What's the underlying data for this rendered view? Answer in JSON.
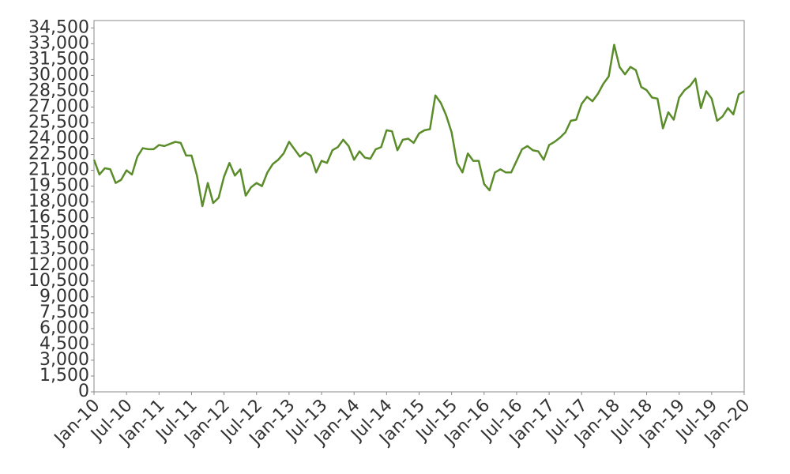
{
  "chart_data": {
    "type": "line",
    "x": [
      "2010-01",
      "2010-02",
      "2010-03",
      "2010-04",
      "2010-05",
      "2010-06",
      "2010-07",
      "2010-08",
      "2010-09",
      "2010-10",
      "2010-11",
      "2010-12",
      "2011-01",
      "2011-02",
      "2011-03",
      "2011-04",
      "2011-05",
      "2011-06",
      "2011-07",
      "2011-08",
      "2011-09",
      "2011-10",
      "2011-11",
      "2011-12",
      "2012-01",
      "2012-02",
      "2012-03",
      "2012-04",
      "2012-05",
      "2012-06",
      "2012-07",
      "2012-08",
      "2012-09",
      "2012-10",
      "2012-11",
      "2012-12",
      "2013-01",
      "2013-02",
      "2013-03",
      "2013-04",
      "2013-05",
      "2013-06",
      "2013-07",
      "2013-08",
      "2013-09",
      "2013-10",
      "2013-11",
      "2013-12",
      "2014-01",
      "2014-02",
      "2014-03",
      "2014-04",
      "2014-05",
      "2014-06",
      "2014-07",
      "2014-08",
      "2014-09",
      "2014-10",
      "2014-11",
      "2014-12",
      "2015-01",
      "2015-02",
      "2015-03",
      "2015-04",
      "2015-05",
      "2015-06",
      "2015-07",
      "2015-08",
      "2015-09",
      "2015-10",
      "2015-11",
      "2015-12",
      "2016-01",
      "2016-02",
      "2016-03",
      "2016-04",
      "2016-05",
      "2016-06",
      "2016-07",
      "2016-08",
      "2016-09",
      "2016-10",
      "2016-11",
      "2016-12",
      "2017-01",
      "2017-02",
      "2017-03",
      "2017-04",
      "2017-05",
      "2017-06",
      "2017-07",
      "2017-08",
      "2017-09",
      "2017-10",
      "2017-11",
      "2017-12",
      "2018-01",
      "2018-02",
      "2018-03",
      "2018-04",
      "2018-05",
      "2018-06",
      "2018-07",
      "2018-08",
      "2018-09",
      "2018-10",
      "2018-11",
      "2018-12",
      "2019-01",
      "2019-02",
      "2019-03",
      "2019-04",
      "2019-05",
      "2019-06",
      "2019-07",
      "2019-08",
      "2019-09",
      "2019-10",
      "2019-11",
      "2019-12",
      "2020-01"
    ],
    "series": [
      {
        "color": "#5b8c2a",
        "values": [
          22000,
          20600,
          21200,
          21100,
          19800,
          20100,
          21000,
          20600,
          22300,
          23100,
          23000,
          23000,
          23400,
          23300,
          23500,
          23700,
          23600,
          22400,
          22400,
          20500,
          17600,
          19800,
          17900,
          18400,
          20400,
          21700,
          20500,
          21100,
          18600,
          19400,
          19800,
          19500,
          20800,
          21600,
          22000,
          22600,
          23700,
          23000,
          22300,
          22700,
          22400,
          20800,
          21900,
          21700,
          22900,
          23200,
          23900,
          23300,
          22000,
          22800,
          22200,
          22100,
          23000,
          23200,
          24800,
          24700,
          22900,
          23900,
          24000,
          23600,
          24500,
          24800,
          24900,
          28100,
          27400,
          26200,
          24600,
          21700,
          20800,
          22600,
          21900,
          21900,
          19700,
          19100,
          20800,
          21100,
          20800,
          20800,
          21900,
          23000,
          23300,
          22900,
          22800,
          22000,
          23400,
          23700,
          24100,
          24600,
          25700,
          25800,
          27300,
          27970,
          27550,
          28250,
          29200,
          29900,
          32900,
          30800,
          30100,
          30800,
          30500,
          28900,
          28600,
          27900,
          27800,
          24980,
          26500,
          25800,
          27900,
          28600,
          29000,
          29700,
          26900,
          28500,
          27800,
          25700,
          26100,
          26900,
          26300,
          28200,
          28500
        ]
      }
    ],
    "xlim": [
      "2010-01",
      "2020-01"
    ],
    "xticks": [
      {
        "value": "2010-01",
        "label": "Jan-10"
      },
      {
        "value": "2010-07",
        "label": "Jul-10"
      },
      {
        "value": "2011-01",
        "label": "Jan-11"
      },
      {
        "value": "2011-07",
        "label": "Jul-11"
      },
      {
        "value": "2012-01",
        "label": "Jan-12"
      },
      {
        "value": "2012-07",
        "label": "Jul-12"
      },
      {
        "value": "2013-01",
        "label": "Jan-13"
      },
      {
        "value": "2013-07",
        "label": "Jul-13"
      },
      {
        "value": "2014-01",
        "label": "Jan-14"
      },
      {
        "value": "2014-07",
        "label": "Jul-14"
      },
      {
        "value": "2015-01",
        "label": "Jan-15"
      },
      {
        "value": "2015-07",
        "label": "Jul-15"
      },
      {
        "value": "2016-01",
        "label": "Jan-16"
      },
      {
        "value": "2016-07",
        "label": "Jul-16"
      },
      {
        "value": "2017-01",
        "label": "Jan-17"
      },
      {
        "value": "2017-07",
        "label": "Jul-17"
      },
      {
        "value": "2018-01",
        "label": "Jan-18"
      },
      {
        "value": "2018-07",
        "label": "Jul-18"
      },
      {
        "value": "2019-01",
        "label": "Jan-19"
      },
      {
        "value": "2019-07",
        "label": "Jul-19"
      },
      {
        "value": "2020-01",
        "label": "Jan-20"
      }
    ],
    "ylim": [
      0,
      35200
    ],
    "yticks": [
      0,
      {
        "value": 1500,
        "label": "1,500"
      },
      {
        "value": 3000,
        "label": "3,000"
      },
      {
        "value": 4500,
        "label": "4,500"
      },
      {
        "value": 6000,
        "label": "6,000"
      },
      {
        "value": 7500,
        "label": "7,500"
      },
      {
        "value": 9000,
        "label": "9,000"
      },
      {
        "value": 10500,
        "label": "10,500"
      },
      {
        "value": 12000,
        "label": "12,000"
      },
      {
        "value": 13500,
        "label": "13,500"
      },
      {
        "value": 15000,
        "label": "15,000"
      },
      {
        "value": 16500,
        "label": "16,500"
      },
      {
        "value": 18000,
        "label": "18,000"
      },
      {
        "value": 19500,
        "label": "19,500"
      },
      {
        "value": 21000,
        "label": "21,000"
      },
      {
        "value": 22500,
        "label": "22,500"
      },
      {
        "value": 24000,
        "label": "24,000"
      },
      {
        "value": 25500,
        "label": "25,500"
      },
      {
        "value": 27000,
        "label": "27,000"
      },
      {
        "value": 28500,
        "label": "28,500"
      },
      {
        "value": 30000,
        "label": "30,000"
      },
      {
        "value": 31500,
        "label": "31,500"
      },
      {
        "value": 33000,
        "label": "33,000"
      },
      {
        "value": 34500,
        "label": "34,500"
      }
    ],
    "grid": false
  }
}
